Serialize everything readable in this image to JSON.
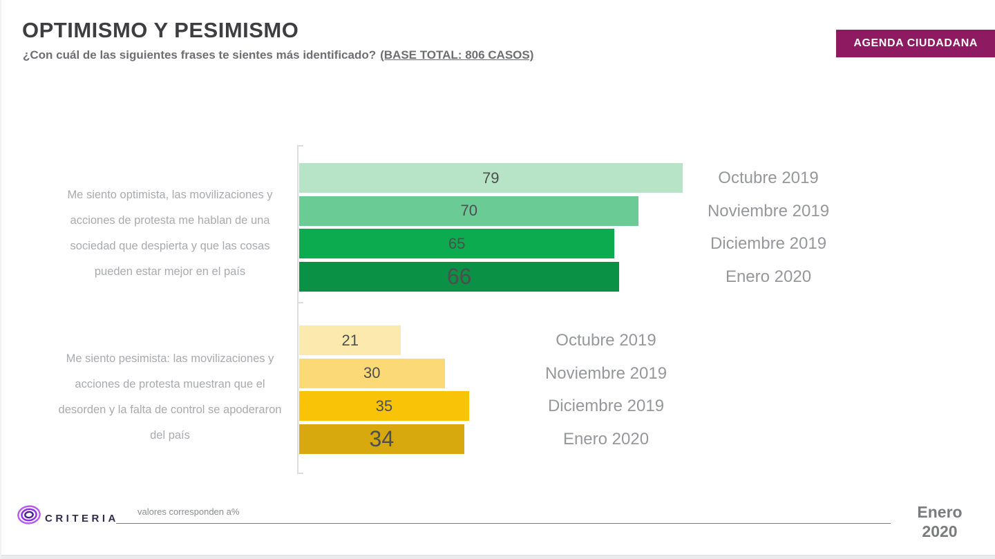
{
  "header": {
    "title": "OPTIMISMO Y PESIMISMO",
    "subtitle": "¿Con cuál de las siguientes frases te sientes más identificado?",
    "base_total": "(BASE TOTAL: 806 CASOS)",
    "badge": "AGENDA CIUDADANA",
    "badge_color": "#8E1A62"
  },
  "chart_data": {
    "type": "bar",
    "orientation": "horizontal",
    "units": "percent",
    "xlim": [
      0,
      100
    ],
    "value_labels": "inside-center",
    "latest_value_emphasized": true,
    "categories": [
      "Octubre 2019",
      "Noviembre 2019",
      "Diciembre 2019",
      "Enero 2020"
    ],
    "series": [
      {
        "name": "optimista",
        "label": "Me siento optimista, las movilizaciones y acciones de protesta me hablan de una sociedad que despierta y que las cosas pueden estar mejor en el país",
        "values": [
          79,
          70,
          65,
          66
        ],
        "colors": [
          "#B7E4C7",
          "#6BCB94",
          "#0CAB4F",
          "#0A9146"
        ]
      },
      {
        "name": "pesimista",
        "label": "Me siento pesimista: las movilizaciones y acciones de protesta muestran que el desorden y la falta de control se apoderaron del país",
        "values": [
          21,
          30,
          35,
          34
        ],
        "colors": [
          "#FBE9AE",
          "#FBD977",
          "#F9C307",
          "#D8A90F"
        ]
      }
    ]
  },
  "footer": {
    "brand": "CRITERIA",
    "note": "valores corresponden a%",
    "date": "Enero\n2020"
  },
  "colors": {
    "title": "#3E3E40",
    "subtitle": "#6D6E71",
    "value_text": "#4D4E50",
    "category_text": "#95979A",
    "statement_text": "#A8AAAD",
    "axis": "#DCDDDE",
    "logo_purple": "#8B2FE8",
    "brand_text": "#322A4A"
  }
}
